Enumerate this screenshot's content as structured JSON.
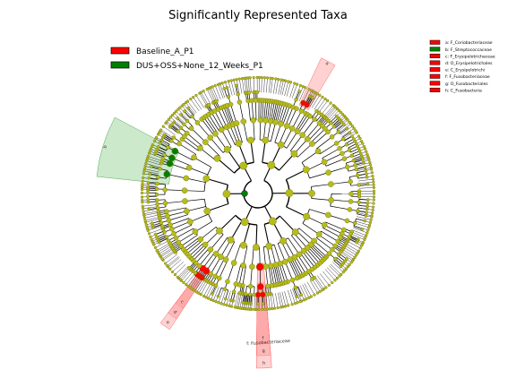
{
  "chart_data": {
    "type": "cladogram",
    "title": "Significantly Represented Taxa",
    "colors": {
      "enriched_a": "#ff0000",
      "enriched_b": "#008000",
      "node": "#b5bd1e",
      "node_stroke": "#6f6a00",
      "shade_a": "#ff9a9a",
      "shade_b": "#8fcf8f"
    },
    "groups": [
      {
        "name": "Baseline_A_P1",
        "color": "#ff0000"
      },
      {
        "name": "DUS+OSS+None_12_Weeks_P1",
        "color": "#008000"
      }
    ],
    "taxa_legend": [
      {
        "label": "a: F_Coriobacteriaceae",
        "color": "#ff0000"
      },
      {
        "label": "b: F_Streptococcaceae",
        "color": "#008000"
      },
      {
        "label": "c: F_Erysipelotrichaceae",
        "color": "#ff0000"
      },
      {
        "label": "d: O_Erysipelotrichales",
        "color": "#ff0000"
      },
      {
        "label": "e: C_Erysipelotrichi",
        "color": "#ff0000"
      },
      {
        "label": "f: F_Fusobacteriaceae",
        "color": "#ff0000"
      },
      {
        "label": "g: O_Fusobacteriales",
        "color": "#ff0000"
      },
      {
        "label": "h: C_Fusobacteria",
        "color": "#ff0000"
      }
    ],
    "highlighted_clades": [
      {
        "letter": "a",
        "group": "Baseline_A_P1",
        "angle_deg": 28,
        "span_deg": 6,
        "level": 5
      },
      {
        "letter": "b",
        "group": "DUS+OSS+None_12_Weeks_P1",
        "angle_deg": 287,
        "span_deg": 22,
        "level": 4
      },
      {
        "letter": "c",
        "group": "Baseline_A_P1",
        "angle_deg": 215,
        "span_deg": 4,
        "level": 6
      },
      {
        "letter": "d",
        "group": "Baseline_A_P1",
        "angle_deg": 215,
        "span_deg": 4,
        "level": 5
      },
      {
        "letter": "e",
        "group": "Baseline_A_P1",
        "angle_deg": 215,
        "span_deg": 4,
        "level": 4
      },
      {
        "letter": "f",
        "group": "Baseline_A_P1",
        "angle_deg": 178,
        "span_deg": 5,
        "level": 5
      },
      {
        "letter": "g",
        "group": "Baseline_A_P1",
        "angle_deg": 178,
        "span_deg": 5,
        "level": 4
      },
      {
        "letter": "h",
        "group": "Baseline_A_P1",
        "angle_deg": 178,
        "span_deg": 5,
        "level": 3
      }
    ],
    "outer_labels": [
      {
        "text": "f: Fusobacteriaceae",
        "angle_deg": 176
      }
    ]
  }
}
